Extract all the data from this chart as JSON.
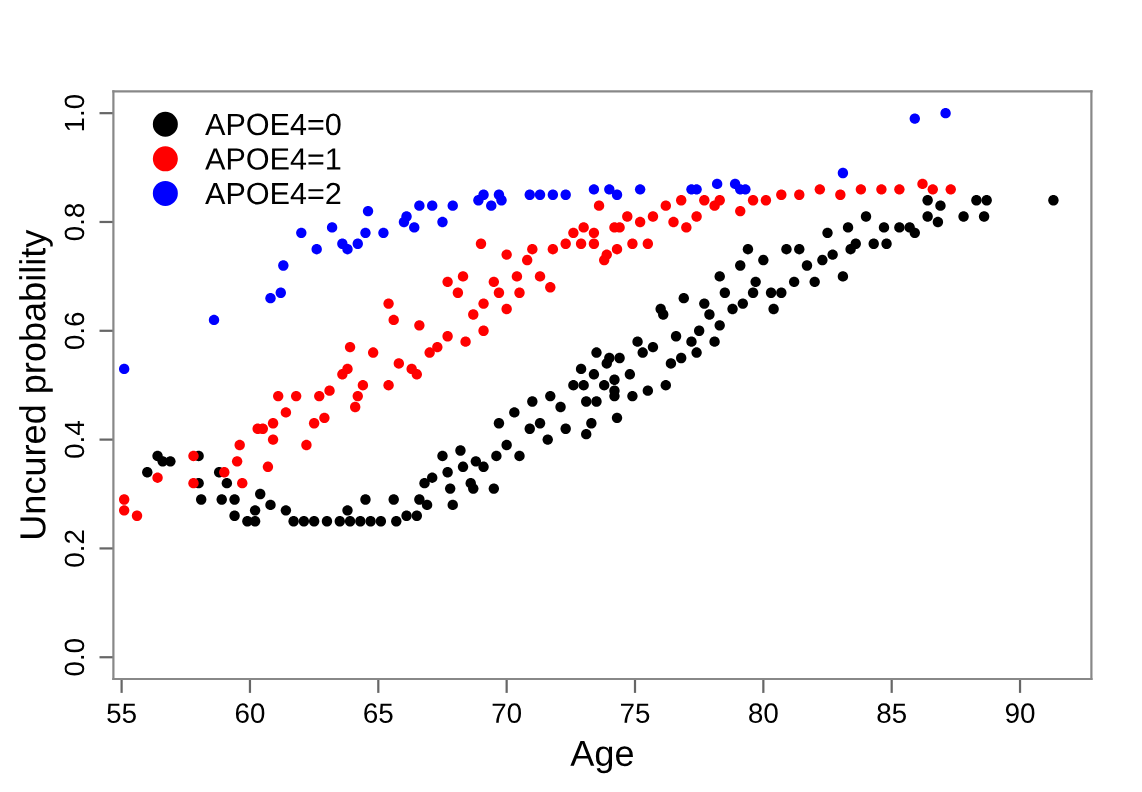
{
  "chart_data": {
    "type": "scatter",
    "xlabel": "Age",
    "ylabel": "Uncured probability",
    "xlim": [
      54.68,
      92.78
    ],
    "ylim": [
      -0.04,
      1.04
    ],
    "xticks": [
      55,
      60,
      65,
      70,
      75,
      80,
      85,
      90
    ],
    "yticks": [
      {
        "value": 0,
        "label": "0.0"
      },
      {
        "value": 0.2,
        "label": "0.2"
      },
      {
        "value": 0.4,
        "label": "0.4"
      },
      {
        "value": 0.6,
        "label": "0.6"
      },
      {
        "value": 0.8,
        "label": "0.8"
      },
      {
        "value": 1,
        "label": "1.0"
      }
    ],
    "grid": false,
    "legend": "top left",
    "marker": "circle",
    "series": [
      {
        "name": "APOE4=0",
        "color": "#000000",
        "x": [
          56.0,
          56.4,
          56.6,
          56.9,
          58.0,
          58.0,
          58.1,
          58.8,
          58.9,
          59.4,
          59.1,
          59.4,
          59.9,
          60.2,
          60.2,
          60.4,
          60.8,
          61.4,
          61.7,
          62.1,
          62.5,
          63.0,
          63.5,
          63.8,
          63.9,
          64.3,
          64.5,
          64.7,
          65.1,
          65.6,
          65.7,
          66.1,
          66.5,
          66.6,
          66.9,
          66.8,
          67.1,
          67.5,
          67.7,
          67.8,
          67.9,
          68.2,
          68.3,
          68.6,
          68.7,
          68.8,
          69.1,
          69.5,
          69.6,
          69.7,
          70.0,
          70.3,
          70.5,
          70.9,
          71.0,
          71.3,
          71.6,
          71.7,
          72.1,
          72.3,
          72.6,
          72.9,
          73.1,
          73.4,
          73.5,
          73.9,
          74.2,
          74.2,
          73.0,
          73.3,
          73.1,
          73.5,
          73.8,
          74.0,
          74.3,
          74.2,
          74.4,
          74.8,
          74.9,
          75.1,
          75.5,
          75.3,
          75.7,
          76.0,
          76.2,
          76.1,
          76.4,
          76.6,
          76.8,
          76.9,
          77.2,
          77.5,
          77.4,
          77.7,
          77.9,
          78.1,
          78.3,
          78.3,
          78.5,
          78.8,
          79.1,
          79.2,
          79.4,
          79.6,
          79.7,
          80.0,
          80.3,
          80.4,
          80.7,
          80.9,
          81.2,
          81.4,
          81.7,
          82.0,
          82.3,
          82.5,
          82.7,
          83.1,
          83.3,
          83.4,
          83.6,
          84.0,
          84.3,
          84.7,
          84.8,
          85.3,
          85.7,
          85.9,
          86.4,
          86.4,
          86.8,
          86.9,
          87.8,
          88.3,
          88.6,
          88.7,
          91.3
        ],
        "values": [
          0.34,
          0.37,
          0.36,
          0.36,
          0.37,
          0.32,
          0.29,
          0.34,
          0.29,
          0.29,
          0.32,
          0.26,
          0.25,
          0.25,
          0.27,
          0.3,
          0.28,
          0.27,
          0.25,
          0.25,
          0.25,
          0.25,
          0.25,
          0.27,
          0.25,
          0.25,
          0.29,
          0.25,
          0.25,
          0.29,
          0.25,
          0.26,
          0.26,
          0.29,
          0.28,
          0.32,
          0.33,
          0.37,
          0.34,
          0.31,
          0.28,
          0.38,
          0.35,
          0.32,
          0.31,
          0.36,
          0.35,
          0.31,
          0.37,
          0.43,
          0.39,
          0.45,
          0.37,
          0.42,
          0.47,
          0.43,
          0.4,
          0.48,
          0.46,
          0.42,
          0.5,
          0.53,
          0.47,
          0.52,
          0.56,
          0.54,
          0.48,
          0.51,
          0.5,
          0.43,
          0.41,
          0.47,
          0.5,
          0.55,
          0.44,
          0.49,
          0.55,
          0.52,
          0.48,
          0.58,
          0.49,
          0.56,
          0.57,
          0.64,
          0.5,
          0.63,
          0.54,
          0.59,
          0.55,
          0.66,
          0.58,
          0.6,
          0.56,
          0.65,
          0.63,
          0.58,
          0.7,
          0.61,
          0.67,
          0.64,
          0.72,
          0.65,
          0.75,
          0.67,
          0.69,
          0.73,
          0.67,
          0.64,
          0.67,
          0.75,
          0.69,
          0.75,
          0.72,
          0.69,
          0.73,
          0.78,
          0.74,
          0.7,
          0.79,
          0.75,
          0.76,
          0.81,
          0.76,
          0.79,
          0.76,
          0.79,
          0.79,
          0.78,
          0.84,
          0.81,
          0.8,
          0.83,
          0.81,
          0.84,
          0.81,
          0.84,
          0.84
        ]
      },
      {
        "name": "APOE4=1",
        "color": "#ff0000",
        "x": [
          55.1,
          55.1,
          55.6,
          56.4,
          57.8,
          57.8,
          59.0,
          59.5,
          59.7,
          59.6,
          60.3,
          60.5,
          60.9,
          60.7,
          60.9,
          61.1,
          61.8,
          61.4,
          62.2,
          62.5,
          62.9,
          62.7,
          63.1,
          63.6,
          63.8,
          63.9,
          64.1,
          64.2,
          64.4,
          64.8,
          65.4,
          65.8,
          66.3,
          66.5,
          65.4,
          65.6,
          66.6,
          67.0,
          67.3,
          67.7,
          67.7,
          68.1,
          68.3,
          68.4,
          68.7,
          69.1,
          69.1,
          69.0,
          69.5,
          69.7,
          70.0,
          70.0,
          70.4,
          70.5,
          70.8,
          71.0,
          71.3,
          71.7,
          71.8,
          72.3,
          72.6,
          72.9,
          73.4,
          73.6,
          73.9,
          74.2,
          73.0,
          73.4,
          73.8,
          74.3,
          74.4,
          74.7,
          74.9,
          75.2,
          75.5,
          75.7,
          76.2,
          76.5,
          76.8,
          77.0,
          77.4,
          77.7,
          78.1,
          78.3,
          79.1,
          79.6,
          80.1,
          80.7,
          81.4,
          82.2,
          83.0,
          83.8,
          84.6,
          85.3,
          86.2,
          86.6,
          87.3
        ],
        "values": [
          0.29,
          0.27,
          0.26,
          0.33,
          0.37,
          0.32,
          0.34,
          0.36,
          0.32,
          0.39,
          0.42,
          0.42,
          0.43,
          0.35,
          0.4,
          0.48,
          0.48,
          0.45,
          0.39,
          0.43,
          0.44,
          0.48,
          0.49,
          0.52,
          0.53,
          0.57,
          0.46,
          0.48,
          0.5,
          0.56,
          0.5,
          0.54,
          0.53,
          0.52,
          0.65,
          0.62,
          0.61,
          0.56,
          0.57,
          0.59,
          0.69,
          0.67,
          0.7,
          0.58,
          0.63,
          0.65,
          0.6,
          0.76,
          0.69,
          0.67,
          0.64,
          0.74,
          0.7,
          0.67,
          0.73,
          0.75,
          0.7,
          0.68,
          0.75,
          0.76,
          0.78,
          0.76,
          0.78,
          0.83,
          0.74,
          0.79,
          0.79,
          0.76,
          0.73,
          0.75,
          0.79,
          0.81,
          0.76,
          0.8,
          0.76,
          0.81,
          0.83,
          0.8,
          0.84,
          0.79,
          0.81,
          0.84,
          0.83,
          0.84,
          0.82,
          0.84,
          0.84,
          0.85,
          0.85,
          0.86,
          0.85,
          0.86,
          0.86,
          0.86,
          0.87,
          0.86,
          0.86
        ]
      },
      {
        "name": "APOE4=2",
        "color": "#0000ff",
        "x": [
          55.1,
          58.6,
          60.8,
          61.2,
          61.3,
          62.0,
          62.6,
          63.2,
          63.6,
          63.8,
          64.2,
          64.5,
          64.6,
          65.2,
          66.0,
          66.1,
          66.6,
          66.4,
          67.1,
          67.5,
          67.9,
          68.9,
          69.1,
          69.4,
          69.7,
          69.8,
          70.9,
          71.3,
          71.8,
          72.3,
          73.4,
          74.0,
          74.3,
          75.2,
          77.2,
          77.4,
          78.2,
          78.9,
          79.1,
          79.3,
          83.1,
          85.9,
          87.1
        ],
        "values": [
          0.53,
          0.62,
          0.66,
          0.67,
          0.72,
          0.78,
          0.75,
          0.79,
          0.76,
          0.75,
          0.76,
          0.78,
          0.82,
          0.78,
          0.8,
          0.81,
          0.83,
          0.79,
          0.83,
          0.8,
          0.83,
          0.84,
          0.85,
          0.83,
          0.85,
          0.84,
          0.85,
          0.85,
          0.85,
          0.85,
          0.86,
          0.86,
          0.85,
          0.86,
          0.86,
          0.86,
          0.87,
          0.87,
          0.86,
          0.86,
          0.89,
          0.99,
          1.0
        ]
      }
    ]
  }
}
